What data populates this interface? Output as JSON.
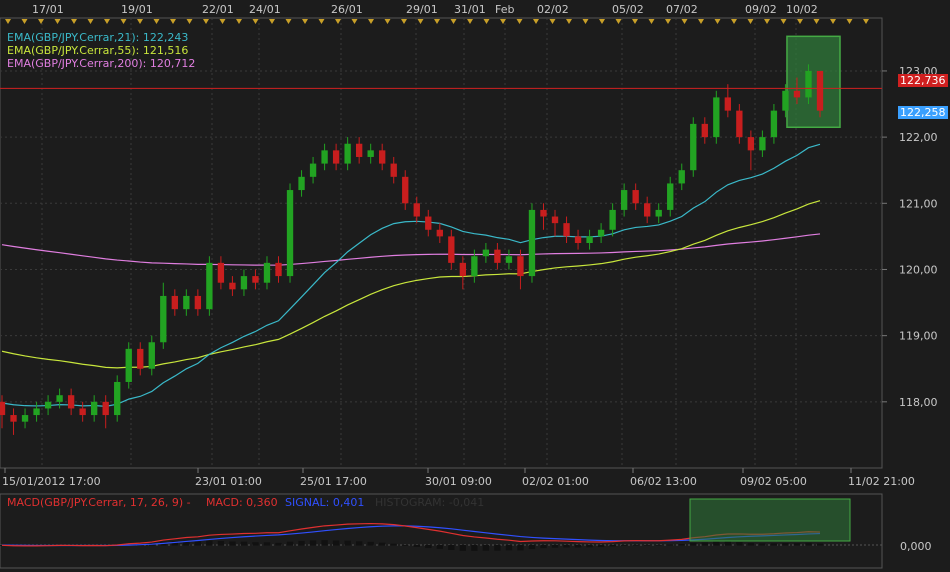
{
  "colors": {
    "background": "#1c1c1c",
    "grid": "#3a3a3a",
    "bull": "#22a322",
    "bear": "#c81e1e",
    "ema21": "#3ab9c9",
    "ema55": "#c8e63c",
    "ema200": "#e07ee0",
    "macd": "#e03030",
    "signal": "#3050ff",
    "text": "#c8c8c8",
    "current_line": "#d02020",
    "highlight": "#2f7a3a"
  },
  "top_axis": {
    "labels": [
      "17/01",
      "19/01",
      "22/01",
      "24/01",
      "26/01",
      "29/01",
      "31/01",
      "Feb",
      "02/02",
      "05/02",
      "07/02",
      "09/02",
      "10/02"
    ]
  },
  "bottom_axis": {
    "labels": [
      "15/01/2012 17:00",
      "23/01 01:00",
      "25/01 17:00",
      "30/01 09:00",
      "02/02 01:00",
      "06/02 13:00",
      "09/02 05:00",
      "11/02 21:00"
    ]
  },
  "legend": {
    "ema21": "EMA(GBP/JPY.Cerrar,21): 122,243",
    "ema55": "EMA(GBP/JPY.Cerrar,55): 121,516",
    "ema200": "EMA(GBP/JPY.Cerrar,200): 120,712"
  },
  "price_tags": {
    "current": "122,736",
    "ema": "122,258"
  },
  "macd_legend": {
    "name": "MACD(GBP/JPY.Cerrar, 17, 26, 9) -",
    "macd": "MACD: 0,360",
    "signal": "SIGNAL: 0,401",
    "histogram": "HISTOGRAM: -0,041"
  },
  "macd_axis": {
    "zero": "0,000"
  },
  "chart_data": {
    "type": "candlestick",
    "symbol": "GBP/JPY",
    "y_axis": {
      "ticks": [
        "123,00",
        "122,00",
        "121,00",
        "120,00",
        "119,00",
        "118,00"
      ],
      "tick_values": [
        123,
        122,
        121,
        120,
        119,
        118
      ],
      "ylim": [
        117.0,
        123.8
      ]
    },
    "current_price": 122.736,
    "candles": [
      [
        118.0,
        117.8,
        118.1,
        117.6
      ],
      [
        117.8,
        117.7,
        117.9,
        117.5
      ],
      [
        117.7,
        117.8,
        117.9,
        117.6
      ],
      [
        117.8,
        117.9,
        118.0,
        117.7
      ],
      [
        117.9,
        118.0,
        118.1,
        117.8
      ],
      [
        118.0,
        118.1,
        118.2,
        117.9
      ],
      [
        118.1,
        117.9,
        118.2,
        117.8
      ],
      [
        117.9,
        117.8,
        118.0,
        117.7
      ],
      [
        117.8,
        118.0,
        118.1,
        117.7
      ],
      [
        118.0,
        117.8,
        118.1,
        117.6
      ],
      [
        117.8,
        118.3,
        118.4,
        117.7
      ],
      [
        118.3,
        118.8,
        118.9,
        118.2
      ],
      [
        118.8,
        118.5,
        118.9,
        118.4
      ],
      [
        118.5,
        118.9,
        119.0,
        118.4
      ],
      [
        118.9,
        119.6,
        119.8,
        118.8
      ],
      [
        119.6,
        119.4,
        119.7,
        119.3
      ],
      [
        119.4,
        119.6,
        119.7,
        119.3
      ],
      [
        119.6,
        119.4,
        119.7,
        119.3
      ],
      [
        119.4,
        120.1,
        120.2,
        119.3
      ],
      [
        120.1,
        119.8,
        120.2,
        119.7
      ],
      [
        119.8,
        119.7,
        119.9,
        119.6
      ],
      [
        119.7,
        119.9,
        120.0,
        119.6
      ],
      [
        119.9,
        119.8,
        120.0,
        119.7
      ],
      [
        119.8,
        120.1,
        120.2,
        119.7
      ],
      [
        120.1,
        119.9,
        120.2,
        119.8
      ],
      [
        119.9,
        121.2,
        121.3,
        119.8
      ],
      [
        121.2,
        121.4,
        121.5,
        121.1
      ],
      [
        121.4,
        121.6,
        121.7,
        121.3
      ],
      [
        121.6,
        121.8,
        121.9,
        121.5
      ],
      [
        121.8,
        121.6,
        121.9,
        121.5
      ],
      [
        121.6,
        121.9,
        122.0,
        121.5
      ],
      [
        121.9,
        121.7,
        122.0,
        121.6
      ],
      [
        121.7,
        121.8,
        121.9,
        121.6
      ],
      [
        121.8,
        121.6,
        121.9,
        121.5
      ],
      [
        121.6,
        121.4,
        121.7,
        121.3
      ],
      [
        121.4,
        121.0,
        121.5,
        120.9
      ],
      [
        121.0,
        120.8,
        121.1,
        120.7
      ],
      [
        120.8,
        120.6,
        120.9,
        120.5
      ],
      [
        120.6,
        120.5,
        120.7,
        120.4
      ],
      [
        120.5,
        120.1,
        120.6,
        120.0
      ],
      [
        120.1,
        119.9,
        120.2,
        119.7
      ],
      [
        119.9,
        120.2,
        120.3,
        119.8
      ],
      [
        120.2,
        120.3,
        120.4,
        120.1
      ],
      [
        120.3,
        120.1,
        120.4,
        120.0
      ],
      [
        120.1,
        120.2,
        120.3,
        120.0
      ],
      [
        120.2,
        119.9,
        120.3,
        119.7
      ],
      [
        119.9,
        120.9,
        121.0,
        119.8
      ],
      [
        120.9,
        120.8,
        121.0,
        120.6
      ],
      [
        120.8,
        120.7,
        120.9,
        120.5
      ],
      [
        120.7,
        120.5,
        120.8,
        120.4
      ],
      [
        120.5,
        120.4,
        120.6,
        120.3
      ],
      [
        120.4,
        120.5,
        120.6,
        120.3
      ],
      [
        120.5,
        120.6,
        120.7,
        120.4
      ],
      [
        120.6,
        120.9,
        121.0,
        120.5
      ],
      [
        120.9,
        121.2,
        121.3,
        120.8
      ],
      [
        121.2,
        121.0,
        121.3,
        120.9
      ],
      [
        121.0,
        120.8,
        121.1,
        120.7
      ],
      [
        120.8,
        120.9,
        121.0,
        120.7
      ],
      [
        120.9,
        121.3,
        121.4,
        120.8
      ],
      [
        121.3,
        121.5,
        121.6,
        121.2
      ],
      [
        121.5,
        122.2,
        122.3,
        121.4
      ],
      [
        122.2,
        122.0,
        122.3,
        121.9
      ],
      [
        122.0,
        122.6,
        122.7,
        121.9
      ],
      [
        122.6,
        122.4,
        122.8,
        122.3
      ],
      [
        122.4,
        122.0,
        122.5,
        121.9
      ],
      [
        122.0,
        121.8,
        122.1,
        121.5
      ],
      [
        121.8,
        122.0,
        122.1,
        121.7
      ],
      [
        122.0,
        122.4,
        122.5,
        121.9
      ],
      [
        122.4,
        122.7,
        122.8,
        122.3
      ],
      [
        122.7,
        122.6,
        122.9,
        122.5
      ],
      [
        122.6,
        123.0,
        123.1,
        122.5
      ],
      [
        123.0,
        122.4,
        123.0,
        122.3
      ]
    ],
    "highlight_candles": [
      69,
      71
    ]
  }
}
